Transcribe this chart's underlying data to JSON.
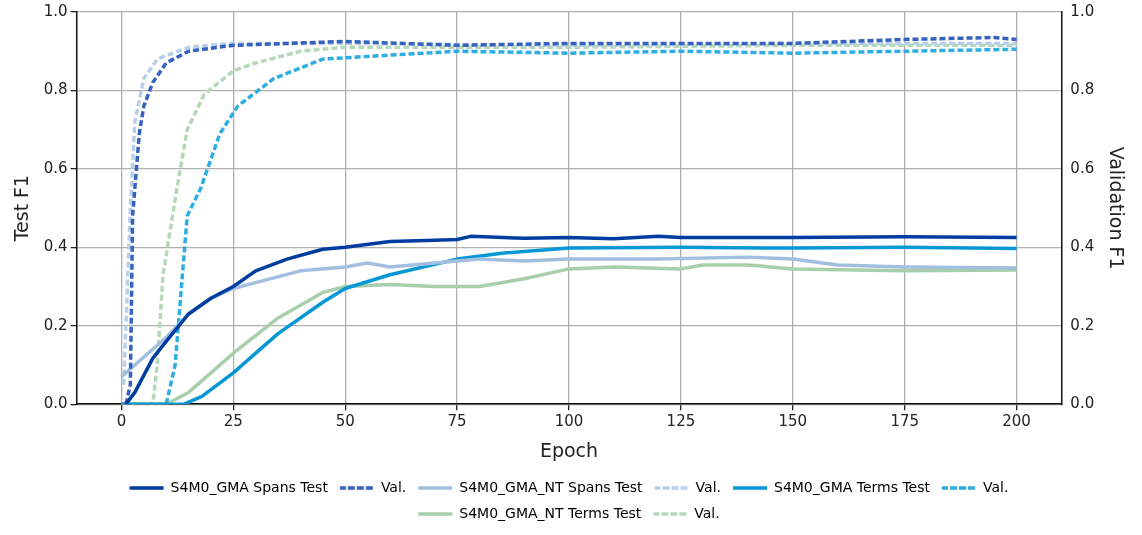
{
  "chart_data": {
    "type": "line",
    "xlabel": "Epoch",
    "ylabel": "Test F1",
    "y2label": "Validation F1",
    "xlim": [
      -10,
      210
    ],
    "xticks": [
      0,
      25,
      50,
      75,
      100,
      125,
      150,
      175,
      200
    ],
    "ylim": [
      0,
      1
    ],
    "yticks": [
      {
        "value": 0,
        "label": "0.0"
      },
      {
        "value": 0.2,
        "label": "0.2"
      },
      {
        "value": 0.4,
        "label": "0.4"
      },
      {
        "value": 0.6,
        "label": "0.6"
      },
      {
        "value": 0.8,
        "label": "0.8"
      },
      {
        "value": 1,
        "label": "1.0"
      }
    ],
    "y2lim": [
      0,
      1
    ],
    "y2ticks": [
      {
        "value": 0,
        "label": "0.0"
      },
      {
        "value": 0.2,
        "label": "0.2"
      },
      {
        "value": 0.4,
        "label": "0.4"
      },
      {
        "value": 0.6,
        "label": "0.6"
      },
      {
        "value": 0.8,
        "label": "0.8"
      },
      {
        "value": 1,
        "label": "1.0"
      }
    ],
    "grid": true,
    "legend": "bottom",
    "marker": "none",
    "series": [
      {
        "name": "S4M0_GMA Spans Test",
        "color": "#003da0",
        "line_style": "solid",
        "x": [
          1,
          3,
          7,
          10,
          15,
          20,
          25,
          30,
          37,
          45,
          50,
          60,
          70,
          75,
          78,
          90,
          100,
          110,
          120,
          125,
          150,
          175,
          200
        ],
        "values": [
          0,
          0.03,
          0.117,
          0.16,
          0.23,
          0.27,
          0.3,
          0.34,
          0.37,
          0.395,
          0.4,
          0.415,
          0.418,
          0.42,
          0.428,
          0.423,
          0.425,
          0.422,
          0.428,
          0.425,
          0.425,
          0.427,
          0.425
        ]
      },
      {
        "name": "Val.",
        "color": "#3561bf",
        "line_style": "dashed",
        "axis": "y2",
        "x": [
          1,
          2,
          2.5,
          3,
          4,
          5,
          7,
          10,
          15,
          25,
          50,
          75,
          100,
          125,
          150,
          175,
          195,
          200
        ],
        "values": [
          0,
          0.05,
          0.48,
          0.55,
          0.69,
          0.76,
          0.82,
          0.87,
          0.9,
          0.915,
          0.925,
          0.915,
          0.92,
          0.92,
          0.92,
          0.93,
          0.935,
          0.93
        ]
      },
      {
        "name": "S4M0_GMA_NT Spans Test",
        "color": "#a3bfe0",
        "line_style": "solid",
        "x": [
          0,
          5,
          10,
          15,
          20,
          25,
          30,
          40,
          50,
          55,
          60,
          70,
          80,
          90,
          100,
          120,
          140,
          150,
          160,
          175,
          200
        ],
        "values": [
          0.07,
          0.12,
          0.17,
          0.23,
          0.27,
          0.295,
          0.31,
          0.34,
          0.35,
          0.36,
          0.35,
          0.36,
          0.37,
          0.365,
          0.37,
          0.37,
          0.375,
          0.37,
          0.355,
          0.35,
          0.347
        ]
      },
      {
        "name": "Val.",
        "color": "#b8cfea",
        "line_style": "dashed",
        "axis": "y2",
        "x": [
          0.5,
          1,
          2,
          3,
          5,
          8,
          15,
          25,
          50,
          100,
          150,
          200
        ],
        "values": [
          0.05,
          0.2,
          0.5,
          0.72,
          0.83,
          0.88,
          0.91,
          0.92,
          0.92,
          0.915,
          0.92,
          0.92
        ]
      },
      {
        "name": "S4M0_GMA Terms Test",
        "color": "#0598d4",
        "line_style": "solid",
        "x": [
          0,
          14,
          18,
          25,
          35,
          45,
          50,
          60,
          75,
          85,
          100,
          125,
          150,
          175,
          200
        ],
        "values": [
          0,
          0,
          0.02,
          0.08,
          0.18,
          0.26,
          0.295,
          0.33,
          0.37,
          0.385,
          0.398,
          0.4,
          0.398,
          0.4,
          0.397
        ]
      },
      {
        "name": "Val.",
        "color": "#2eaee0",
        "line_style": "dashed",
        "axis": "y2",
        "x": [
          0,
          10,
          12,
          14.7,
          17.7,
          22,
          26,
          34,
          45,
          60,
          75,
          100,
          125,
          150,
          175,
          200
        ],
        "values": [
          0,
          0,
          0.1,
          0.48,
          0.55,
          0.69,
          0.76,
          0.83,
          0.88,
          0.89,
          0.9,
          0.895,
          0.9,
          0.895,
          0.9,
          0.905
        ]
      },
      {
        "name": "S4M0_GMA_NT Terms Test",
        "color": "#a8cfab",
        "line_style": "solid",
        "x": [
          0,
          10,
          15,
          20,
          25,
          35,
          45,
          50,
          60,
          70,
          80,
          90,
          100,
          110,
          125,
          130,
          140,
          150,
          175,
          200
        ],
        "values": [
          0,
          0,
          0.03,
          0.08,
          0.13,
          0.22,
          0.285,
          0.3,
          0.305,
          0.3,
          0.3,
          0.32,
          0.345,
          0.35,
          0.345,
          0.355,
          0.355,
          0.345,
          0.34,
          0.342
        ]
      },
      {
        "name": "Val.",
        "color": "#b6d8b9",
        "line_style": "dashed",
        "axis": "y2",
        "x": [
          0,
          7,
          8,
          9.3,
          12.4,
          14.7,
          18.5,
          25,
          30,
          40,
          50,
          100,
          150,
          200
        ],
        "values": [
          0,
          0,
          0.1,
          0.33,
          0.55,
          0.7,
          0.79,
          0.85,
          0.87,
          0.9,
          0.91,
          0.91,
          0.915,
          0.915
        ]
      }
    ]
  }
}
